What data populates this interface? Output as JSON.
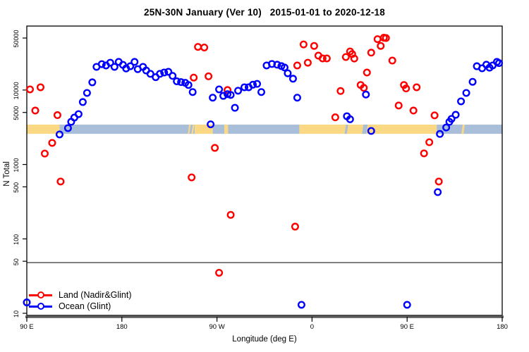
{
  "chart_data": {
    "type": "scatter",
    "title": "25N-30N January (Ver 10)   2015-01-01 to 2020-12-18",
    "xlabel": "Longitude (deg E)",
    "ylabel": "N Total",
    "x_axis": {
      "min": 90,
      "max": 540,
      "ticks": [
        {
          "v": 90,
          "label": "90 E"
        },
        {
          "v": 180,
          "label": "180"
        },
        {
          "v": 270,
          "label": "90 W"
        },
        {
          "v": 360,
          "label": "0"
        },
        {
          "v": 450,
          "label": "90 E"
        },
        {
          "v": 540,
          "label": "180"
        }
      ]
    },
    "y_axis": {
      "scale": "log",
      "ticks": [
        10,
        50,
        100,
        500,
        1000,
        5000,
        10000,
        50000
      ],
      "range": [
        10,
        77000
      ]
    },
    "threshold_line_n": 48,
    "grid": false,
    "legend_position": "bottom-left",
    "map_band": {
      "n_high": 3430,
      "n_low": 2580,
      "land_color": "#fbd884",
      "ocean_color": "#a9bed9",
      "segments": [
        {
          "from": 90,
          "to": 121,
          "surface": "land"
        },
        {
          "from": 121,
          "to": 249,
          "surface": "ocean"
        },
        {
          "from": 249,
          "to": 266,
          "surface": "land"
        },
        {
          "from": 266,
          "to": 277,
          "surface": "ocean"
        },
        {
          "from": 277,
          "to": 280.5,
          "surface": "land"
        },
        {
          "from": 280.5,
          "to": 348,
          "surface": "ocean"
        },
        {
          "from": 348,
          "to": 478,
          "surface": "land"
        },
        {
          "from": 478,
          "to": 540,
          "surface": "ocean"
        }
      ],
      "details": [
        {
          "from": 243,
          "to": 244.5,
          "surface": "land"
        },
        {
          "from": 246.5,
          "to": 248,
          "surface": "land"
        },
        {
          "from": 391.5,
          "to": 393.5,
          "surface": "ocean"
        },
        {
          "from": 408,
          "to": 412,
          "surface": "ocean"
        },
        {
          "from": 502,
          "to": 504,
          "surface": "land"
        }
      ]
    },
    "series": [
      {
        "name": "Land (Nadir&Glint)",
        "color": "#ff0000",
        "points": [
          [
            93,
            10200
          ],
          [
            103,
            10900
          ],
          [
            98,
            5300
          ],
          [
            119,
            4600
          ],
          [
            114,
            1950
          ],
          [
            107,
            1400
          ],
          [
            122,
            590
          ],
          [
            246,
            670
          ],
          [
            248,
            14700
          ],
          [
            252,
            38000
          ],
          [
            258,
            37300
          ],
          [
            262,
            15300
          ],
          [
            268,
            1670
          ],
          [
            272,
            35
          ],
          [
            280,
            10000
          ],
          [
            283,
            210
          ],
          [
            344,
            146
          ],
          [
            346,
            21400
          ],
          [
            352,
            41000
          ],
          [
            356,
            23300
          ],
          [
            362,
            39200
          ],
          [
            366,
            29000
          ],
          [
            370,
            26600
          ],
          [
            374,
            26600
          ],
          [
            382,
            4300
          ],
          [
            387,
            9700
          ],
          [
            392,
            27800
          ],
          [
            396,
            33000
          ],
          [
            398,
            30500
          ],
          [
            400,
            26500
          ],
          [
            406,
            11700
          ],
          [
            409,
            10700
          ],
          [
            412,
            17200
          ],
          [
            416,
            31800
          ],
          [
            422,
            48300
          ],
          [
            425,
            39200
          ],
          [
            428,
            50500
          ],
          [
            430,
            50000
          ],
          [
            436,
            24900
          ],
          [
            442,
            6200
          ],
          [
            447,
            11700
          ],
          [
            449,
            10500
          ],
          [
            456,
            5300
          ],
          [
            459,
            10900
          ],
          [
            466,
            1410
          ],
          [
            471,
            1990
          ],
          [
            476,
            4570
          ],
          [
            480,
            590
          ]
        ]
      },
      {
        "name": "Ocean (Glint)",
        "color": "#0000ff",
        "points": [
          [
            90,
            14
          ],
          [
            121,
            2530
          ],
          [
            129,
            3080
          ],
          [
            132,
            3740
          ],
          [
            135,
            4270
          ],
          [
            139,
            4750
          ],
          [
            143,
            6900
          ],
          [
            147,
            9150
          ],
          [
            152,
            12700
          ],
          [
            156,
            20500
          ],
          [
            161,
            22300
          ],
          [
            165,
            21400
          ],
          [
            169,
            23300
          ],
          [
            173,
            20500
          ],
          [
            177,
            23900
          ],
          [
            181,
            21800
          ],
          [
            184,
            19500
          ],
          [
            188,
            20900
          ],
          [
            192,
            23900
          ],
          [
            195,
            19100
          ],
          [
            200,
            20500
          ],
          [
            203,
            18300
          ],
          [
            207,
            16500
          ],
          [
            212,
            14900
          ],
          [
            216,
            16500
          ],
          [
            220,
            17200
          ],
          [
            224,
            17600
          ],
          [
            228,
            15500
          ],
          [
            232,
            13100
          ],
          [
            236,
            12800
          ],
          [
            240,
            12500
          ],
          [
            243,
            11700
          ],
          [
            247,
            9400
          ],
          [
            264,
            3460
          ],
          [
            266,
            7900
          ],
          [
            272,
            10200
          ],
          [
            276,
            8350
          ],
          [
            280,
            8800
          ],
          [
            283,
            8600
          ],
          [
            287,
            5770
          ],
          [
            290,
            9800
          ],
          [
            296,
            10900
          ],
          [
            300,
            10900
          ],
          [
            304,
            11800
          ],
          [
            308,
            12100
          ],
          [
            312,
            9400
          ],
          [
            317,
            21400
          ],
          [
            322,
            22400
          ],
          [
            327,
            21900
          ],
          [
            331,
            21000
          ],
          [
            334,
            20100
          ],
          [
            337,
            16800
          ],
          [
            342,
            14200
          ],
          [
            346,
            7900
          ],
          [
            350,
            13
          ],
          [
            393,
            4450
          ],
          [
            396,
            4050
          ],
          [
            411,
            8700
          ],
          [
            416,
            2820
          ],
          [
            450,
            13
          ],
          [
            479,
            425
          ],
          [
            481,
            2570
          ],
          [
            487,
            3140
          ],
          [
            490,
            3740
          ],
          [
            492,
            4100
          ],
          [
            496,
            4650
          ],
          [
            501,
            7050
          ],
          [
            506,
            9150
          ],
          [
            512,
            12900
          ],
          [
            516,
            20900
          ],
          [
            521,
            19600
          ],
          [
            525,
            21900
          ],
          [
            528,
            20000
          ],
          [
            531,
            21400
          ],
          [
            535,
            23900
          ],
          [
            537,
            23000
          ]
        ]
      }
    ],
    "colors": {
      "frame": "#000000",
      "bottom_axis": "#5a5a5a",
      "threshold_line": "#333333"
    }
  }
}
